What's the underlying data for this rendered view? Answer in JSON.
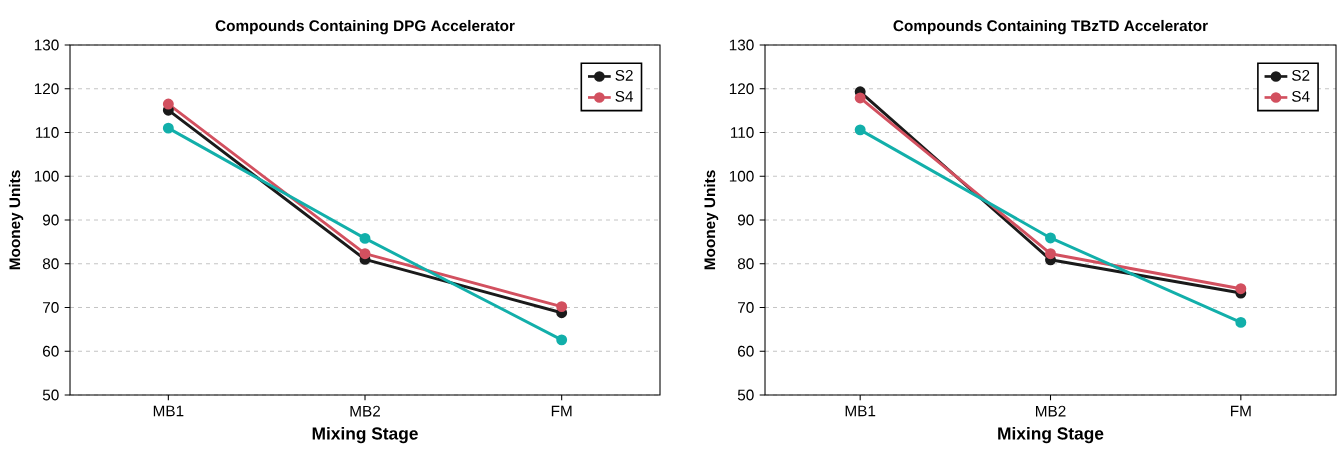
{
  "chart_data": [
    {
      "type": "line",
      "title": "Compounds Containing DPG Accelerator",
      "xlabel": "Mixing Stage",
      "ylabel": "Mooney Units",
      "categories": [
        "MB1",
        "MB2",
        "FM"
      ],
      "series": [
        {
          "name": "S2",
          "color": "#1a1a1a",
          "values": [
            115.1,
            81.0,
            68.8
          ]
        },
        {
          "name": "S4",
          "color": "#d2505f",
          "values": [
            116.5,
            82.3,
            70.2
          ]
        },
        {
          "color": "#12afaa",
          "values": [
            111.0,
            85.8,
            62.6
          ]
        }
      ],
      "ylim": [
        50,
        130
      ],
      "yticks": [
        50,
        60,
        70,
        80,
        90,
        100,
        110,
        120,
        130
      ],
      "grid": "y",
      "legend": "top right",
      "marker": "circle",
      "line_style": "solid"
    },
    {
      "type": "line",
      "title": "Compounds Containing TBzTD Accelerator",
      "xlabel": "Mixing Stage",
      "ylabel": "Mooney Units",
      "categories": [
        "MB1",
        "MB2",
        "FM"
      ],
      "series": [
        {
          "name": "S2",
          "color": "#1a1a1a",
          "values": [
            119.3,
            80.9,
            73.3
          ]
        },
        {
          "name": "S4",
          "color": "#d2505f",
          "values": [
            117.9,
            82.3,
            74.3
          ]
        },
        {
          "color": "#12afaa",
          "values": [
            110.6,
            85.9,
            66.6
          ]
        }
      ],
      "ylim": [
        50,
        130
      ],
      "yticks": [
        50,
        60,
        70,
        80,
        90,
        100,
        110,
        120,
        130
      ],
      "grid": "y",
      "legend": "top right",
      "marker": "circle",
      "line_style": "solid"
    }
  ]
}
